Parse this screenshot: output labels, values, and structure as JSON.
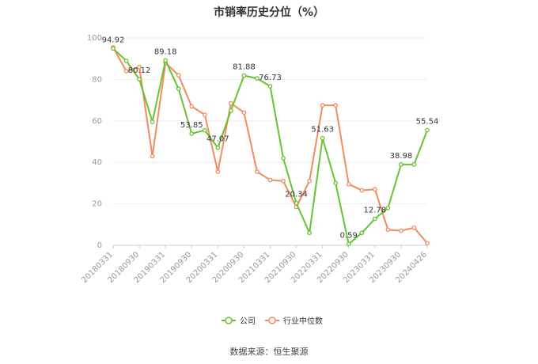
{
  "chart_data": {
    "type": "line",
    "title": "市销率历史分位（%）",
    "ylim": [
      0,
      100
    ],
    "yticks": [
      "0",
      "20",
      "40",
      "60",
      "80",
      "100"
    ],
    "x_tick_labels": [
      "20180331",
      "20180930",
      "20190331",
      "20190930",
      "20200331",
      "20200930",
      "20210331",
      "20210930",
      "20220331",
      "20220930",
      "20230331",
      "20230930",
      "20240426"
    ],
    "grid": true,
    "legend_position": "bottom",
    "series": [
      {
        "name": "公司",
        "color": "#66c431",
        "values": [
          94.92,
          89.0,
          80.12,
          59.5,
          89.18,
          75.5,
          53.85,
          55.5,
          47.07,
          65.0,
          81.88,
          80.5,
          76.73,
          42.0,
          20.34,
          6.0,
          51.63,
          30.0,
          0.59,
          6.0,
          12.78,
          18.0,
          38.98,
          39.0,
          55.54
        ],
        "data_labels": {
          "0": "94.92",
          "2": "80.12",
          "4": "89.18",
          "6": "53.85",
          "8": "47.07",
          "10": "81.88",
          "12": "76.73",
          "14": "20.34",
          "16": "51.63",
          "18": "0.59",
          "20": "12.78",
          "22": "38.98",
          "24": "55.54"
        }
      },
      {
        "name": "行业中位数",
        "color": "#f28b5e",
        "values": [
          95.5,
          84.0,
          86.0,
          43.0,
          88.0,
          82.0,
          67.0,
          63.0,
          35.5,
          68.5,
          64.0,
          35.5,
          31.5,
          31.0,
          18.5,
          31.0,
          67.5,
          67.5,
          29.5,
          26.5,
          27.0,
          7.5,
          7.0,
          8.5,
          1.0
        ]
      }
    ]
  },
  "source_note": "数据来源：恒生聚源"
}
